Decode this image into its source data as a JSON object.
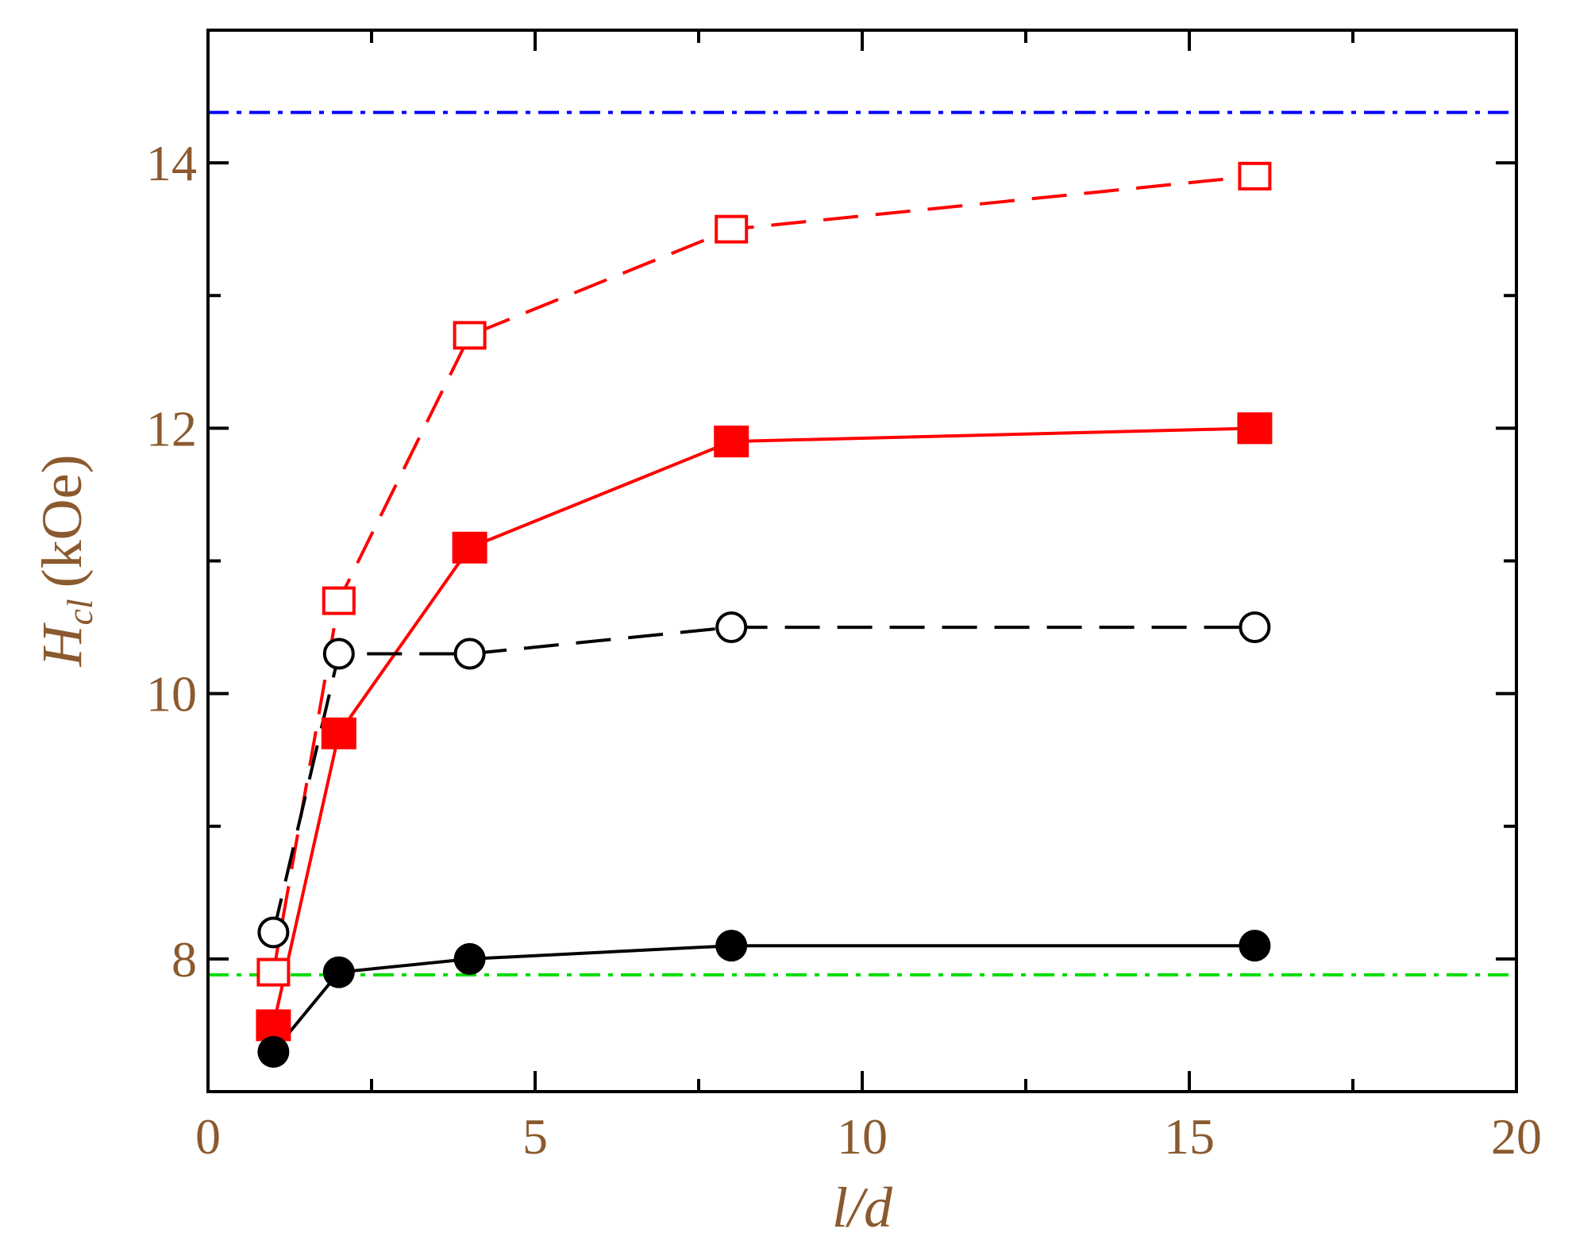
{
  "chart_data": {
    "type": "line",
    "title": "",
    "xlabel": "l/d",
    "ylabel_main": "H",
    "ylabel_sub": "cl",
    "ylabel_unit": "(kOe)",
    "xlim": [
      0,
      20
    ],
    "ylim": [
      7,
      15
    ],
    "x_ticks_major": [
      0,
      5,
      10,
      15,
      20
    ],
    "x_tick_labels": [
      "0",
      "5",
      "10",
      "15",
      "20"
    ],
    "x_ticks_minor": [
      2.5,
      7.5,
      12.5,
      17.5
    ],
    "y_ticks_major": [
      8,
      10,
      12,
      14
    ],
    "y_tick_labels": [
      "8",
      "10",
      "12",
      "14"
    ],
    "y_ticks_minor": [
      9,
      11,
      13
    ],
    "grid": false,
    "legend": "none",
    "series": [
      {
        "x": [
          1,
          2,
          4,
          8,
          16
        ],
        "y": [
          7.9,
          10.7,
          12.7,
          13.5,
          13.9
        ],
        "color": "#ff0000",
        "marker": "square-open",
        "line": "dashed"
      },
      {
        "x": [
          1,
          2,
          4,
          8,
          16
        ],
        "y": [
          7.5,
          9.7,
          11.1,
          11.9,
          12.0
        ],
        "color": "#ff0000",
        "marker": "square-filled",
        "line": "solid"
      },
      {
        "x": [
          1,
          2,
          4,
          8,
          16
        ],
        "y": [
          8.2,
          10.3,
          10.3,
          10.5,
          10.5
        ],
        "color": "#000000",
        "marker": "circle-open",
        "line": "dashed"
      },
      {
        "x": [
          1,
          2,
          4,
          8,
          16
        ],
        "y": [
          7.3,
          7.9,
          8.0,
          8.1,
          8.1
        ],
        "color": "#000000",
        "marker": "circle-filled",
        "line": "solid"
      }
    ],
    "reference_lines": [
      {
        "y": 14.38,
        "color": "#0000ff",
        "style": "dash-dot"
      },
      {
        "y": 7.88,
        "color": "#00dd00",
        "style": "dash-dot"
      }
    ]
  }
}
